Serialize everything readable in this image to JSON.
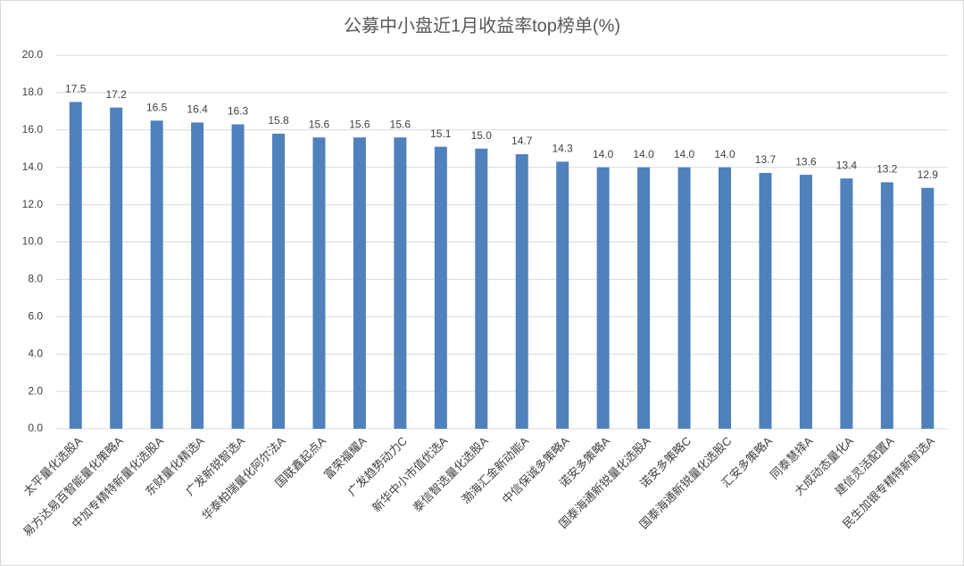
{
  "chart_data": {
    "type": "bar",
    "title": "公募中小盘近1月收益率top榜单(%)",
    "categories": [
      "太平量化选股A",
      "易方达易百智能量化策略A",
      "中加专精特新量化选股A",
      "东财量化精选A",
      "广发新锐智选A",
      "华泰柏瑞量化阿尔法A",
      "国联鑫起点A",
      "富荣福耀A",
      "广发趋势动力C",
      "新华中小市值优选A",
      "泰信智选量化选股A",
      "渤海汇金新动能A",
      "中信保诚多策略A",
      "诺安多策略A",
      "国泰海通新锐量化选股A",
      "诺安多策略C",
      "国泰海通新锐量化选股C",
      "汇安多策略A",
      "同泰慧择A",
      "大成动态量化A",
      "建信灵活配置A",
      "民生加银专精特新智选A"
    ],
    "values": [
      17.5,
      17.2,
      16.5,
      16.4,
      16.3,
      15.8,
      15.6,
      15.6,
      15.6,
      15.1,
      15.0,
      14.7,
      14.3,
      14.0,
      14.0,
      14.0,
      14.0,
      13.7,
      13.6,
      13.4,
      13.2,
      12.9
    ],
    "value_labels": [
      "17.5",
      "17.2",
      "16.5",
      "16.4",
      "16.3",
      "15.8",
      "15.6",
      "15.6",
      "15.6",
      "15.1",
      "15.0",
      "14.7",
      "14.3",
      "14.0",
      "14.0",
      "14.0",
      "14.0",
      "13.7",
      "13.6",
      "13.4",
      "13.2",
      "12.9"
    ],
    "color": "#4f81bd",
    "ylim": [
      0,
      20
    ],
    "yticks": [
      {
        "value": 0,
        "label": "0.0"
      },
      {
        "value": 2,
        "label": "2.0"
      },
      {
        "value": 4,
        "label": "4.0"
      },
      {
        "value": 6,
        "label": "6.0"
      },
      {
        "value": 8,
        "label": "8.0"
      },
      {
        "value": 10,
        "label": "10.0"
      },
      {
        "value": 12,
        "label": "12.0"
      },
      {
        "value": 14,
        "label": "14.0"
      },
      {
        "value": 16,
        "label": "16.0"
      },
      {
        "value": 18,
        "label": "18.0"
      },
      {
        "value": 20,
        "label": "20.0"
      }
    ],
    "grid": true
  }
}
